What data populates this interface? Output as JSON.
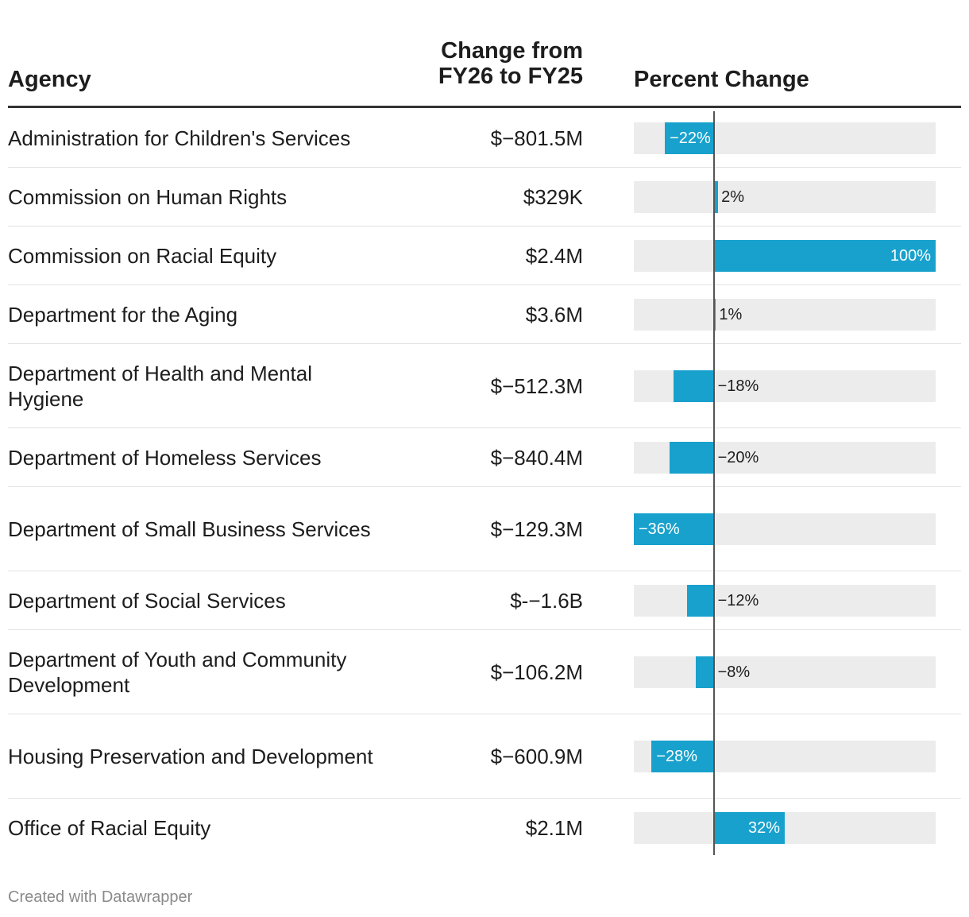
{
  "chart_data": {
    "type": "table",
    "columns": [
      "Agency",
      "Change from FY26 to FY25",
      "Percent Change"
    ],
    "header_change_lines": [
      "Change from",
      "FY26 to FY25"
    ],
    "bar_color": "#18a1cd",
    "track_color": "#ececec",
    "pct_domain": [
      -36,
      100
    ],
    "rows": [
      {
        "agency": "Administration for Children's Services",
        "change": "$−801.5M",
        "pct": -22,
        "pct_label": "−22%"
      },
      {
        "agency": "Commission on Human Rights",
        "change": "$329K",
        "pct": 2,
        "pct_label": "2%"
      },
      {
        "agency": "Commission on Racial Equity",
        "change": "$2.4M",
        "pct": 100,
        "pct_label": "100%"
      },
      {
        "agency": "Department for the Aging",
        "change": "$3.6M",
        "pct": 1,
        "pct_label": "1%"
      },
      {
        "agency": "Department of Health and Mental Hygiene",
        "change": "$−512.3M",
        "pct": -18,
        "pct_label": "−18%"
      },
      {
        "agency": "Department of Homeless Services",
        "change": "$−840.4M",
        "pct": -20,
        "pct_label": "−20%"
      },
      {
        "agency": "Department of Small Business Services",
        "change": "$−129.3M",
        "pct": -36,
        "pct_label": "−36%"
      },
      {
        "agency": "Department of Social Services",
        "change": "$-−1.6B",
        "pct": -12,
        "pct_label": "−12%"
      },
      {
        "agency": "Department of Youth and Community Development",
        "change": "$−106.2M",
        "pct": -8,
        "pct_label": "−8%"
      },
      {
        "agency": "Housing Preservation and Development",
        "change": "$−600.9M",
        "pct": -28,
        "pct_label": "−28%"
      },
      {
        "agency": "Office of Racial Equity",
        "change": "$2.1M",
        "pct": 32,
        "pct_label": "32%"
      }
    ],
    "footer": "Created with Datawrapper"
  }
}
